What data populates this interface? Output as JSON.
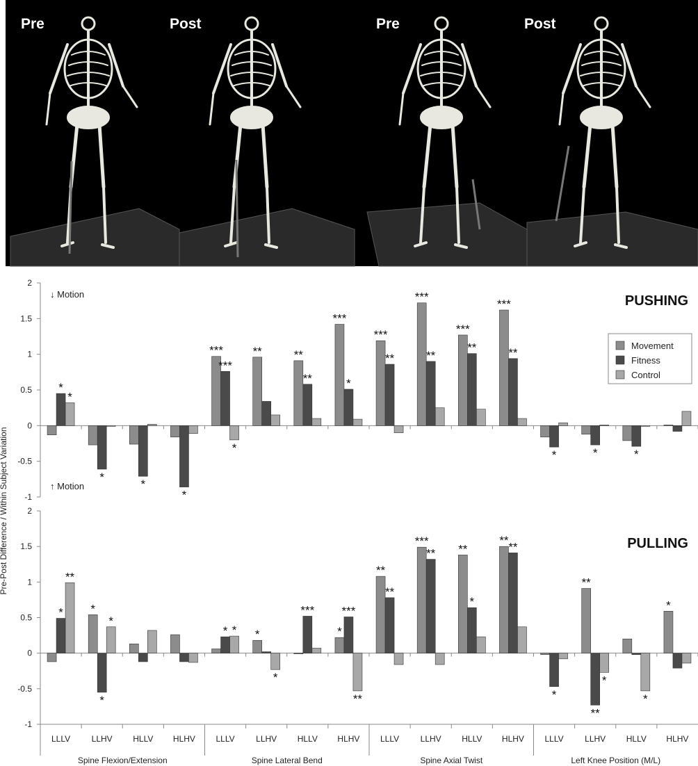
{
  "panels": [
    "Pre",
    "Post",
    "Pre",
    "Post"
  ],
  "y_label": "Pre-Post Difference / Within Subject Variation",
  "chart_data": [
    {
      "type": "bar",
      "title": "PUSHING",
      "annotations": [
        "↓ Motion",
        "↑ Motion"
      ],
      "ylim": [
        -1,
        2
      ],
      "yticks": [
        -1,
        -0.5,
        0,
        0.5,
        1,
        1.5,
        2
      ],
      "series": [
        {
          "name": "Movement",
          "color": "#8c8c8c",
          "values": [
            -0.13,
            -0.27,
            -0.26,
            -0.16,
            0.97,
            0.96,
            0.91,
            1.42,
            1.19,
            1.72,
            1.27,
            1.62,
            -0.16,
            -0.12,
            -0.21,
            0.01
          ],
          "significance": [
            null,
            null,
            null,
            null,
            "***",
            "**",
            "**",
            "***",
            "***",
            "***",
            "***",
            "***",
            null,
            null,
            null,
            null
          ]
        },
        {
          "name": "Fitness",
          "color": "#4a4a4a",
          "values": [
            0.45,
            -0.61,
            -0.71,
            -0.86,
            0.76,
            0.34,
            0.58,
            0.51,
            0.86,
            0.9,
            1.01,
            0.94,
            -0.3,
            -0.27,
            -0.29,
            -0.08
          ],
          "significance": [
            "*",
            "*",
            "*",
            "*",
            "***",
            null,
            "**",
            "*",
            "**",
            "**",
            "**",
            "**",
            "*",
            "*",
            "*",
            null
          ]
        },
        {
          "name": "Control",
          "color": "#a8a8a8",
          "values": [
            0.32,
            -0.01,
            0.02,
            -0.11,
            -0.2,
            0.15,
            0.1,
            0.09,
            -0.1,
            0.25,
            0.23,
            0.1,
            0.04,
            0.01,
            -0.01,
            0.2
          ],
          "significance": [
            "*",
            null,
            null,
            null,
            "*",
            null,
            null,
            null,
            null,
            null,
            null,
            null,
            null,
            null,
            null,
            null
          ]
        }
      ]
    },
    {
      "type": "bar",
      "title": "PULLING",
      "categories": [
        "LLLV",
        "LLHV",
        "HLLV",
        "HLHV",
        "LLLV",
        "LLHV",
        "HLLV",
        "HLHV",
        "LLLV",
        "LLHV",
        "HLLV",
        "HLHV",
        "LLLV",
        "LLHV",
        "HLLV",
        "HLHV"
      ],
      "groups": [
        "Spine Flexion/Extension",
        "Spine Lateral Bend",
        "Spine Axial Twist",
        "Left Knee Position (M/L)"
      ],
      "ylim": [
        -1,
        2
      ],
      "yticks": [
        -1,
        -0.5,
        0,
        0.5,
        1,
        1.5,
        2
      ],
      "series": [
        {
          "color": "#8c8c8c",
          "values": [
            -0.12,
            0.54,
            0.13,
            0.26,
            0.06,
            0.18,
            -0.01,
            0.22,
            1.08,
            1.49,
            1.38,
            1.5,
            -0.02,
            0.91,
            0.2,
            0.59
          ],
          "significance": [
            null,
            "*",
            null,
            null,
            null,
            "*",
            null,
            "*",
            "**",
            "***",
            "**",
            "**",
            null,
            "**",
            null,
            "*"
          ]
        },
        {
          "color": "#4a4a4a",
          "values": [
            0.49,
            -0.55,
            -0.12,
            -0.12,
            0.23,
            0.02,
            0.52,
            0.51,
            0.78,
            1.32,
            0.64,
            1.41,
            -0.47,
            -0.73,
            -0.02,
            -0.21
          ],
          "significance": [
            "*",
            "*",
            null,
            null,
            "*",
            null,
            "***",
            "***",
            "**",
            "**",
            "*",
            "**",
            "*",
            "**",
            null,
            null
          ]
        },
        {
          "color": "#a8a8a8",
          "values": [
            0.99,
            0.37,
            0.32,
            -0.13,
            0.24,
            -0.23,
            0.07,
            -0.53,
            -0.16,
            -0.16,
            0.23,
            0.37,
            -0.08,
            -0.27,
            -0.53,
            -0.14
          ],
          "significance": [
            "**",
            "*",
            null,
            null,
            "*",
            "*",
            null,
            "**",
            null,
            null,
            null,
            null,
            null,
            "*",
            "*",
            null
          ]
        }
      ]
    }
  ]
}
